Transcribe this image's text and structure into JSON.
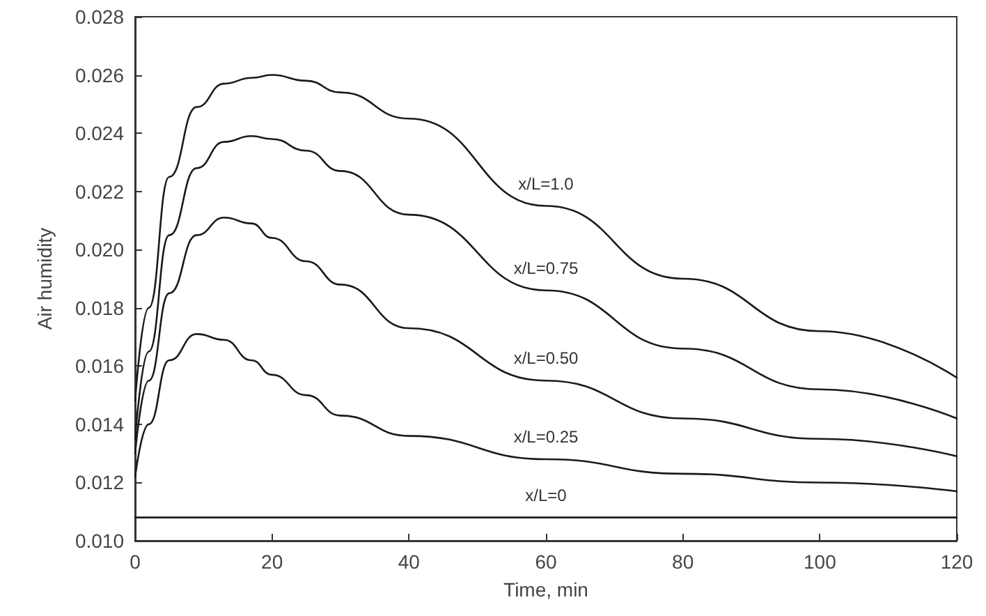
{
  "chart_data": {
    "type": "line",
    "xlabel": "Time, min",
    "ylabel": "Air humidity",
    "x": [
      0,
      2,
      5,
      9,
      13,
      17,
      20,
      25,
      30,
      40,
      60,
      80,
      100,
      120
    ],
    "series": [
      {
        "name": "x/L=1.0",
        "color": "#1a1a1a",
        "values": [
          0.0148,
          0.018,
          0.0225,
          0.0249,
          0.0257,
          0.0259,
          0.026,
          0.0258,
          0.0254,
          0.0245,
          0.0215,
          0.019,
          0.0172,
          0.0156
        ]
      },
      {
        "name": "x/L=0.75",
        "color": "#1a1a1a",
        "values": [
          0.0135,
          0.0165,
          0.0205,
          0.0228,
          0.0237,
          0.0239,
          0.0238,
          0.0234,
          0.0227,
          0.0212,
          0.0186,
          0.0166,
          0.0152,
          0.0142
        ]
      },
      {
        "name": "x/L=0.50",
        "color": "#1a1a1a",
        "values": [
          0.013,
          0.0155,
          0.0185,
          0.0205,
          0.0211,
          0.0209,
          0.0204,
          0.0196,
          0.0188,
          0.0173,
          0.0155,
          0.0142,
          0.0135,
          0.0129
        ]
      },
      {
        "name": "x/L=0.25",
        "color": "#1a1a1a",
        "values": [
          0.0122,
          0.014,
          0.0162,
          0.0171,
          0.0169,
          0.0162,
          0.0157,
          0.015,
          0.0143,
          0.0136,
          0.0128,
          0.0123,
          0.012,
          0.0117
        ]
      },
      {
        "name": "x/L=0",
        "color": "#1a1a1a",
        "values": [
          0.0108,
          0.0108,
          0.0108,
          0.0108,
          0.0108,
          0.0108,
          0.0108,
          0.0108,
          0.0108,
          0.0108,
          0.0108,
          0.0108,
          0.0108,
          0.0108
        ]
      }
    ],
    "xlim": [
      0,
      120
    ],
    "xticks": [
      0,
      20,
      40,
      60,
      80,
      100,
      120
    ],
    "ylim": [
      0.01,
      0.028
    ],
    "yticks": [
      {
        "value": 0.01,
        "label": "0.010"
      },
      {
        "value": 0.012,
        "label": "0.012"
      },
      {
        "value": 0.014,
        "label": "0.014"
      },
      {
        "value": 0.016,
        "label": "0.016"
      },
      {
        "value": 0.018,
        "label": "0.018"
      },
      {
        "value": 0.02,
        "label": "0.020"
      },
      {
        "value": 0.022,
        "label": "0.022"
      },
      {
        "value": 0.024,
        "label": "0.024"
      },
      {
        "value": 0.026,
        "label": "0.026"
      },
      {
        "value": 0.028,
        "label": "0.028"
      }
    ],
    "grid": false,
    "legend": false,
    "marker": "none",
    "line_style": "solid"
  }
}
